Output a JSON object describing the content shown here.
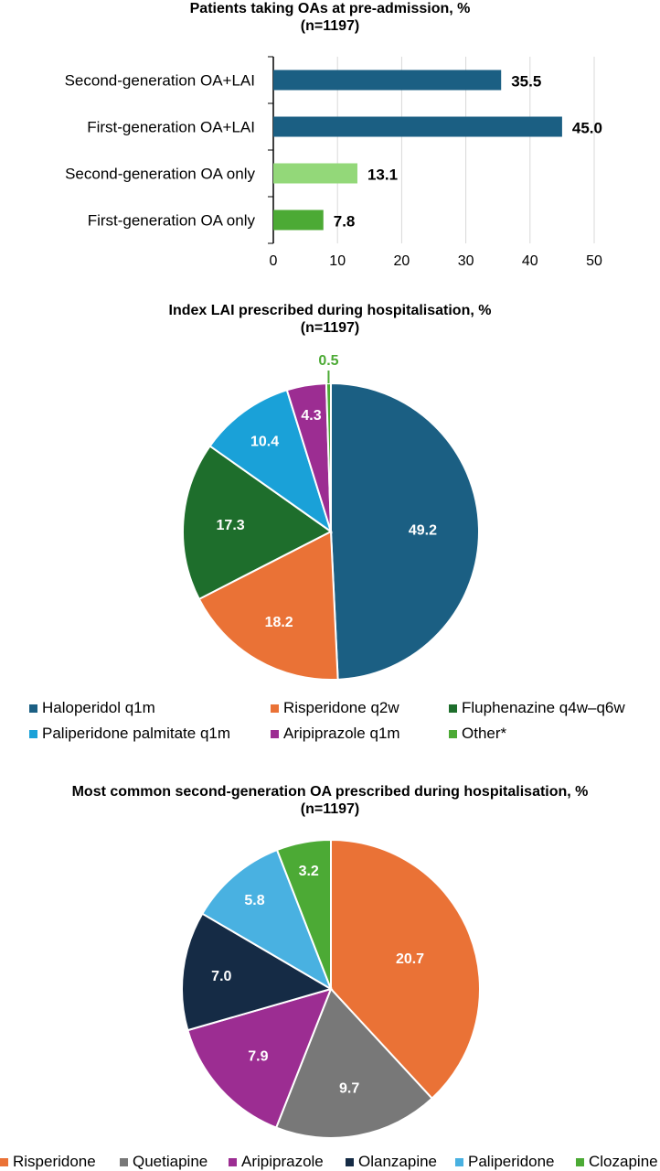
{
  "chart_data": [
    {
      "type": "bar",
      "orientation": "horizontal",
      "title": "Patients taking OAs at pre-admission, %",
      "subtitle": "(n=1197)",
      "categories": [
        "Second-generation OA+LAI",
        "First-generation OA+LAI",
        "Second-generation OA only",
        "First-generation OA only"
      ],
      "values": [
        35.5,
        45.0,
        13.1,
        7.8
      ],
      "value_labels": [
        "35.5",
        "45.0",
        "13.1",
        "7.8"
      ],
      "colors": [
        "#1b5f83",
        "#1b5f83",
        "#93d879",
        "#4caa35"
      ],
      "xlim": [
        0,
        50
      ],
      "xticks": [
        0,
        10,
        20,
        30,
        40,
        50
      ],
      "grid": true
    },
    {
      "type": "pie",
      "title": "Index LAI prescribed during hospitalisation, %",
      "subtitle": "(n=1197)",
      "labels": [
        "Haloperidol q1m",
        "Risperidone q2w",
        "Fluphenazine q4w–q6w",
        "Paliperidone palmitate q1m",
        "Aripiprazole q1m",
        "Other*"
      ],
      "values": [
        49.2,
        18.2,
        17.3,
        10.4,
        4.3,
        0.5
      ],
      "value_labels": [
        "49.2",
        "18.2",
        "17.3",
        "10.4",
        "4.3",
        "0.5"
      ],
      "colors": [
        "#1b5f83",
        "#ea7236",
        "#1e6e2c",
        "#1aa1d8",
        "#9c2d92",
        "#4caa35"
      ],
      "legend_position": "bottom"
    },
    {
      "type": "pie",
      "title": "Most common second-generation OA prescribed during hospitalisation, %",
      "subtitle": "(n=1197)",
      "labels": [
        "Risperidone",
        "Quetiapine",
        "Aripiprazole",
        "Olanzapine",
        "Paliperidone",
        "Clozapine"
      ],
      "values": [
        20.7,
        9.7,
        7.9,
        7.0,
        5.8,
        3.2
      ],
      "value_labels": [
        "20.7",
        "9.7",
        "7.9",
        "7.0",
        "5.8",
        "3.2"
      ],
      "colors": [
        "#ea7236",
        "#787878",
        "#9c2d92",
        "#152b45",
        "#49b1e1",
        "#4caa35"
      ],
      "legend_position": "bottom"
    }
  ]
}
